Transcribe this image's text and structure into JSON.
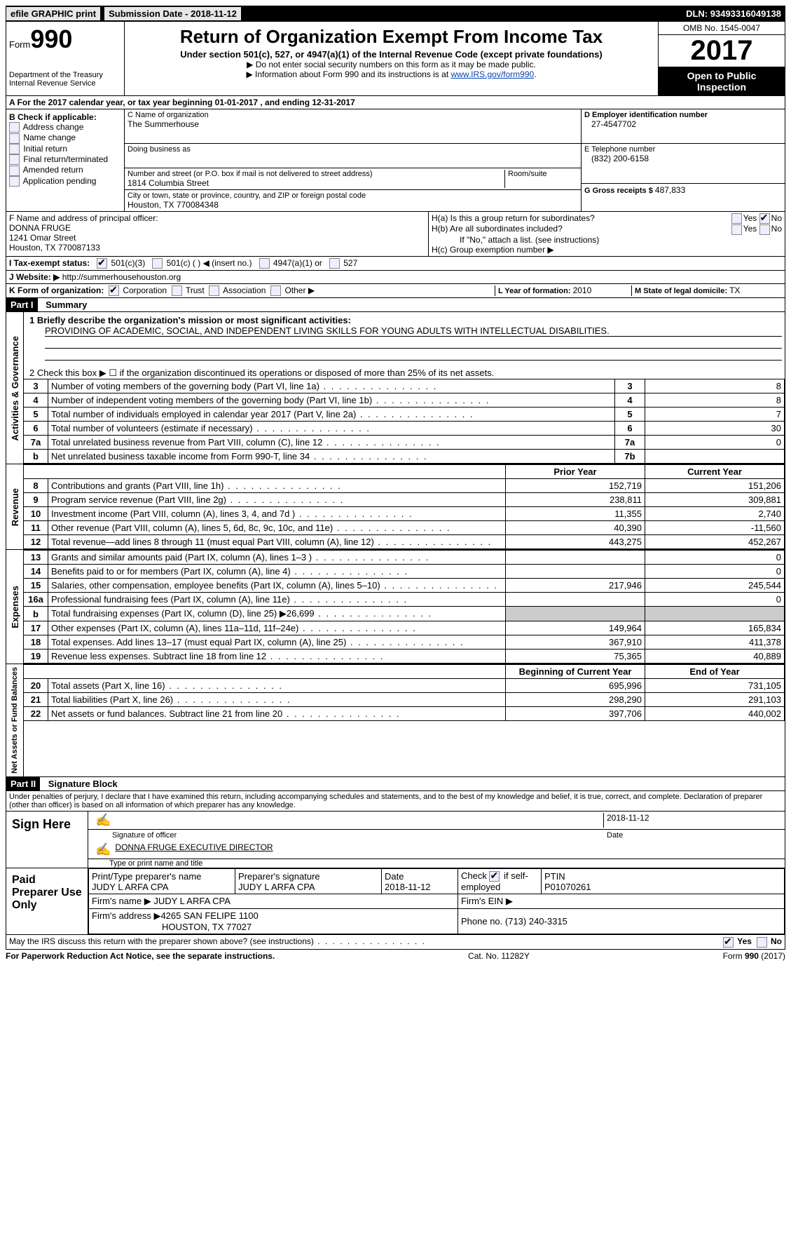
{
  "topbar": {
    "efile": "efile GRAPHIC print",
    "submission_label": "Submission Date - ",
    "submission_date": "2018-11-12",
    "dln_label": "DLN: ",
    "dln": "93493316049138"
  },
  "header": {
    "form_label": "Form",
    "form_number": "990",
    "dept": "Department of the Treasury",
    "irs": "Internal Revenue Service",
    "title": "Return of Organization Exempt From Income Tax",
    "subtitle": "Under section 501(c), 527, or 4947(a)(1) of the Internal Revenue Code (except private foundations)",
    "note1": "▶ Do not enter social security numbers on this form as it may be made public.",
    "note2_pre": "▶ Information about Form 990 and its instructions is at ",
    "note2_link": "www.IRS.gov/form990",
    "omb": "OMB No. 1545-0047",
    "year": "2017",
    "open": "Open to Public Inspection"
  },
  "boxA": {
    "line": "A  For the 2017 calendar year, or tax year beginning 01-01-2017   , and ending 12-31-2017"
  },
  "boxB": {
    "title": "B Check if applicable:",
    "items": [
      "Address change",
      "Name change",
      "Initial return",
      "Final return/terminated",
      "Amended return",
      "Application pending"
    ]
  },
  "boxC": {
    "name_label": "C Name of organization",
    "name": "The Summerhouse",
    "dba_label": "Doing business as",
    "addr_label": "Number and street (or P.O. box if mail is not delivered to street address)",
    "room_label": "Room/suite",
    "addr": "1814 Columbia Street",
    "city_label": "City or town, state or province, country, and ZIP or foreign postal code",
    "city": "Houston, TX  770084348"
  },
  "boxD": {
    "label": "D Employer identification number",
    "ein": "27-4547702",
    "tel_label": "E Telephone number",
    "tel": "(832) 200-6158",
    "gross_label": "G Gross receipts $ ",
    "gross": "487,833"
  },
  "boxF": {
    "label": "F  Name and address of principal officer:",
    "name": "DONNA FRUGE",
    "addr1": "1241 Omar Street",
    "addr2": "Houston, TX  770087133"
  },
  "boxH": {
    "a": "H(a)  Is this a group return for subordinates?",
    "b": "H(b)  Are all subordinates included?",
    "b2": "If \"No,\" attach a list. (see instructions)",
    "c": "H(c)  Group exemption number ▶",
    "yes": "Yes",
    "no": "No"
  },
  "boxI": {
    "label": "I  Tax-exempt status:",
    "o1": "501(c)(3)",
    "o2": "501(c) (   ) ◀ (insert no.)",
    "o3": "4947(a)(1) or",
    "o4": "527"
  },
  "boxJ": {
    "label": "J  Website: ▶ ",
    "url": "http://summerhousehouston.org"
  },
  "boxK": {
    "label": "K Form of organization:",
    "o1": "Corporation",
    "o2": "Trust",
    "o3": "Association",
    "o4": "Other ▶",
    "L_label": "L Year of formation: ",
    "L_val": "2010",
    "M_label": "M State of legal domicile: ",
    "M_val": "TX"
  },
  "part1": {
    "hdr": "Part I",
    "title": "Summary",
    "line1_label": "1 Briefly describe the organization's mission or most significant activities:",
    "line1_text": "PROVIDING OF ACADEMIC, SOCIAL, AND INDEPENDENT LIVING SKILLS FOR YOUNG ADULTS WITH INTELLECTUAL DISABILITIES.",
    "line2": "2  Check this box ▶ ☐  if the organization discontinued its operations or disposed of more than 25% of its net assets."
  },
  "gov_side": "Activities & Governance",
  "rev_side": "Revenue",
  "exp_side": "Expenses",
  "net_side": "Net Assets or Fund Balances",
  "gov_lines": [
    {
      "n": "3",
      "label": "Number of voting members of the governing body (Part VI, line 1a)",
      "col": "3",
      "val": "8"
    },
    {
      "n": "4",
      "label": "Number of independent voting members of the governing body (Part VI, line 1b)",
      "col": "4",
      "val": "8"
    },
    {
      "n": "5",
      "label": "Total number of individuals employed in calendar year 2017 (Part V, line 2a)",
      "col": "5",
      "val": "7"
    },
    {
      "n": "6",
      "label": "Total number of volunteers (estimate if necessary)",
      "col": "6",
      "val": "30"
    },
    {
      "n": "7a",
      "label": "Total unrelated business revenue from Part VIII, column (C), line 12",
      "col": "7a",
      "val": "0"
    },
    {
      "n": "b",
      "label": "Net unrelated business taxable income from Form 990-T, line 34",
      "col": "7b",
      "val": ""
    }
  ],
  "rev_hdr": {
    "prior": "Prior Year",
    "current": "Current Year"
  },
  "rev_lines": [
    {
      "n": "8",
      "label": "Contributions and grants (Part VIII, line 1h)",
      "p": "152,719",
      "c": "151,206"
    },
    {
      "n": "9",
      "label": "Program service revenue (Part VIII, line 2g)",
      "p": "238,811",
      "c": "309,881"
    },
    {
      "n": "10",
      "label": "Investment income (Part VIII, column (A), lines 3, 4, and 7d )",
      "p": "11,355",
      "c": "2,740"
    },
    {
      "n": "11",
      "label": "Other revenue (Part VIII, column (A), lines 5, 6d, 8c, 9c, 10c, and 11e)",
      "p": "40,390",
      "c": "-11,560"
    },
    {
      "n": "12",
      "label": "Total revenue—add lines 8 through 11 (must equal Part VIII, column (A), line 12)",
      "p": "443,275",
      "c": "452,267"
    }
  ],
  "exp_lines": [
    {
      "n": "13",
      "label": "Grants and similar amounts paid (Part IX, column (A), lines 1–3 )",
      "p": "",
      "c": "0"
    },
    {
      "n": "14",
      "label": "Benefits paid to or for members (Part IX, column (A), line 4)",
      "p": "",
      "c": "0"
    },
    {
      "n": "15",
      "label": "Salaries, other compensation, employee benefits (Part IX, column (A), lines 5–10)",
      "p": "217,946",
      "c": "245,544"
    },
    {
      "n": "16a",
      "label": "Professional fundraising fees (Part IX, column (A), line 11e)",
      "p": "",
      "c": "0"
    },
    {
      "n": "b",
      "label": "Total fundraising expenses (Part IX, column (D), line 25) ▶26,699",
      "p": "SHADE",
      "c": "SHADE"
    },
    {
      "n": "17",
      "label": "Other expenses (Part IX, column (A), lines 11a–11d, 11f–24e)",
      "p": "149,964",
      "c": "165,834"
    },
    {
      "n": "18",
      "label": "Total expenses. Add lines 13–17 (must equal Part IX, column (A), line 25)",
      "p": "367,910",
      "c": "411,378"
    },
    {
      "n": "19",
      "label": "Revenue less expenses. Subtract line 18 from line 12",
      "p": "75,365",
      "c": "40,889"
    }
  ],
  "net_hdr": {
    "prior": "Beginning of Current Year",
    "current": "End of Year"
  },
  "net_lines": [
    {
      "n": "20",
      "label": "Total assets (Part X, line 16)",
      "p": "695,996",
      "c": "731,105"
    },
    {
      "n": "21",
      "label": "Total liabilities (Part X, line 26)",
      "p": "298,290",
      "c": "291,103"
    },
    {
      "n": "22",
      "label": "Net assets or fund balances. Subtract line 21 from line 20",
      "p": "397,706",
      "c": "440,002"
    }
  ],
  "part2": {
    "hdr": "Part II",
    "title": "Signature Block",
    "decl": "Under penalties of perjury, I declare that I have examined this return, including accompanying schedules and statements, and to the best of my knowledge and belief, it is true, correct, and complete. Declaration of preparer (other than officer) is based on all information of which preparer has any knowledge."
  },
  "sign": {
    "here": "Sign Here",
    "sig_label": "Signature of officer",
    "date_label": "Date",
    "date": "2018-11-12",
    "name": "DONNA FRUGE  EXECUTIVE DIRECTOR",
    "name_label": "Type or print name and title"
  },
  "paid": {
    "title": "Paid Preparer Use Only",
    "prep_name_label": "Print/Type preparer's name",
    "prep_name": "JUDY L ARFA CPA",
    "prep_sig_label": "Preparer's signature",
    "prep_sig": "JUDY L ARFA CPA",
    "date_label": "Date",
    "date": "2018-11-12",
    "check_label": "Check ☑ if self-employed",
    "ptin_label": "PTIN",
    "ptin": "P01070261",
    "firm_name_label": "Firm's name    ▶ ",
    "firm_name": "JUDY L ARFA CPA",
    "firm_ein_label": "Firm's EIN ▶",
    "firm_addr_label": "Firm's address ▶",
    "firm_addr1": "4265 SAN FELIPE 1100",
    "firm_addr2": "HOUSTON, TX  77027",
    "phone_label": "Phone no. ",
    "phone": "(713) 240-3315"
  },
  "discuss": {
    "q": "May the IRS discuss this return with the preparer shown above? (see instructions)",
    "yes": "Yes",
    "no": "No"
  },
  "footer": {
    "left": "For Paperwork Reduction Act Notice, see the separate instructions.",
    "mid": "Cat. No. 11282Y",
    "right_pre": "Form ",
    "right_form": "990",
    "right_post": " (2017)"
  }
}
